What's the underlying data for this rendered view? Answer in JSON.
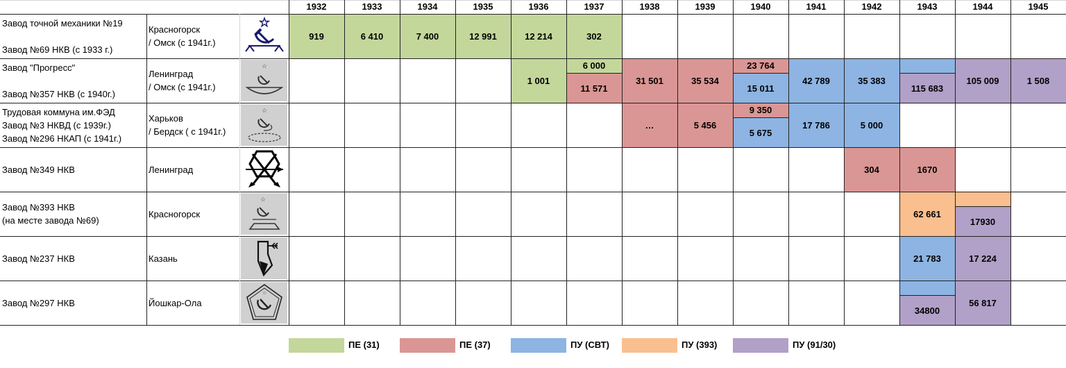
{
  "colors": {
    "pe31": "#c4d79b",
    "pe37": "#da9694",
    "pu_svt": "#8db4e2",
    "pu393": "#fabf8f",
    "pu9130": "#b1a0c7",
    "logo_bg": "#d0d0d0"
  },
  "years": [
    "1932",
    "1933",
    "1934",
    "1935",
    "1936",
    "1937",
    "1938",
    "1939",
    "1940",
    "1941",
    "1942",
    "1943",
    "1944",
    "1945"
  ],
  "rows": [
    {
      "name": "Завод точной механики №19\n\nЗавод №69 НКВ (с 1933 г.)",
      "city": "Красногорск\n/ Омск (с 1941г.)",
      "logo": "hammer-sickle-arrows-icon",
      "logo_bg": false
    },
    {
      "name": "Завод \"Прогресс\"\n\nЗавод №357 НКВ (с 1940г.)",
      "city": "Ленинград\n/ Омск (с 1941г.)",
      "logo": "hammer-sickle-bowl-icon",
      "logo_bg": true
    },
    {
      "name": "Трудовая коммуна им.ФЭД\nЗавод №3 НКВД (с 1939г.)\nЗавод №296 НКАП (с 1941г.)",
      "city": "Харьков\n/ Бердск ( с 1941г.)",
      "logo": "hammer-sickle-ellipse-icon",
      "logo_bg": true
    },
    {
      "name": "Завод №349 НКВ",
      "city": "Ленинград",
      "logo": "hexagon-arrows-icon",
      "logo_bg": false
    },
    {
      "name": "Завод №393 НКВ\n(на месте завода №69)",
      "city": "Красногорск",
      "logo": "hammer-sickle-trapezoid-icon",
      "logo_bg": true
    },
    {
      "name": "Завод №237 НКВ",
      "city": "Казань",
      "logo": "kazan-arrow-icon",
      "logo_bg": true
    },
    {
      "name": "Завод №297 НКВ",
      "city": "Йошкар-Ола",
      "logo": "pentagon-hammer-sickle-icon",
      "logo_bg": true
    }
  ],
  "cells": [
    {
      "row": 0,
      "col": 0,
      "span": 1,
      "part": "full",
      "type": "pe31",
      "value": "919"
    },
    {
      "row": 0,
      "col": 1,
      "span": 1,
      "part": "full",
      "type": "pe31",
      "value": "6 410"
    },
    {
      "row": 0,
      "col": 2,
      "span": 1,
      "part": "full",
      "type": "pe31",
      "value": "7 400"
    },
    {
      "row": 0,
      "col": 3,
      "span": 1,
      "part": "full",
      "type": "pe31",
      "value": "12 991"
    },
    {
      "row": 0,
      "col": 4,
      "span": 1,
      "part": "full",
      "type": "pe31",
      "value": "12 214"
    },
    {
      "row": 0,
      "col": 5,
      "span": 1,
      "part": "full",
      "type": "pe31",
      "value": "302"
    },
    {
      "row": 1,
      "col": 4,
      "span": 1,
      "part": "full",
      "type": "pe31",
      "value": "1 001"
    },
    {
      "row": 1,
      "col": 5,
      "span": 1,
      "part": "top",
      "type": "pe31",
      "value": "6 000"
    },
    {
      "row": 1,
      "col": 5,
      "span": 1,
      "part": "bottom",
      "type": "pe37",
      "value": "11 571"
    },
    {
      "row": 1,
      "col": 6,
      "span": 1,
      "part": "full",
      "type": "pe37",
      "value": "31 501"
    },
    {
      "row": 1,
      "col": 7,
      "span": 1,
      "part": "full",
      "type": "pe37",
      "value": "35 534"
    },
    {
      "row": 1,
      "col": 8,
      "span": 1,
      "part": "top",
      "type": "pe37",
      "value": "23 764"
    },
    {
      "row": 1,
      "col": 8,
      "span": 1,
      "part": "bottom",
      "type": "pu_svt",
      "value": "15 011"
    },
    {
      "row": 1,
      "col": 9,
      "span": 1,
      "part": "full",
      "type": "pu_svt",
      "value": "42 789"
    },
    {
      "row": 1,
      "col": 10,
      "span": 1,
      "part": "full",
      "type": "pu_svt",
      "value": "35 383"
    },
    {
      "row": 1,
      "col": 11,
      "span": 1,
      "part": "top",
      "type": "pu_svt",
      "value": ""
    },
    {
      "row": 1,
      "col": 11,
      "span": 1,
      "part": "bottom",
      "type": "pu9130",
      "value": "115 683"
    },
    {
      "row": 1,
      "col": 12,
      "span": 1,
      "part": "full",
      "type": "pu9130",
      "value": "105 009"
    },
    {
      "row": 1,
      "col": 13,
      "span": 1,
      "part": "full",
      "type": "pu9130",
      "value": "1 508"
    },
    {
      "row": 2,
      "col": 6,
      "span": 1,
      "part": "full",
      "type": "pe37",
      "value": "…"
    },
    {
      "row": 2,
      "col": 7,
      "span": 1,
      "part": "full",
      "type": "pe37",
      "value": "5 456"
    },
    {
      "row": 2,
      "col": 8,
      "span": 1,
      "part": "top",
      "type": "pe37",
      "value": "9 350"
    },
    {
      "row": 2,
      "col": 8,
      "span": 1,
      "part": "bottom",
      "type": "pu_svt",
      "value": "5 675"
    },
    {
      "row": 2,
      "col": 9,
      "span": 1,
      "part": "full",
      "type": "pu_svt",
      "value": "17 786"
    },
    {
      "row": 2,
      "col": 10,
      "span": 1,
      "part": "full",
      "type": "pu_svt",
      "value": "5 000"
    },
    {
      "row": 3,
      "col": 10,
      "span": 1,
      "part": "full",
      "type": "pe37",
      "value": "304"
    },
    {
      "row": 3,
      "col": 11,
      "span": 1,
      "part": "full",
      "type": "pe37",
      "value": "1670"
    },
    {
      "row": 4,
      "col": 11,
      "span": 1,
      "part": "full",
      "type": "pu393",
      "value": "62 661"
    },
    {
      "row": 4,
      "col": 12,
      "span": 1,
      "part": "top",
      "type": "pu393",
      "value": ""
    },
    {
      "row": 4,
      "col": 12,
      "span": 1,
      "part": "bottom",
      "type": "pu9130",
      "value": "17930"
    },
    {
      "row": 5,
      "col": 11,
      "span": 1,
      "part": "full",
      "type": "pu_svt",
      "value": "21 783"
    },
    {
      "row": 5,
      "col": 12,
      "span": 1,
      "part": "full",
      "type": "pu9130",
      "value": "17 224"
    },
    {
      "row": 6,
      "col": 11,
      "span": 1,
      "part": "top",
      "type": "pu_svt",
      "value": ""
    },
    {
      "row": 6,
      "col": 11,
      "span": 1,
      "part": "bottom",
      "type": "pu9130",
      "value": "34800"
    },
    {
      "row": 6,
      "col": 12,
      "span": 1,
      "part": "full",
      "type": "pu9130",
      "value": "56 817"
    }
  ],
  "legend": [
    {
      "type": "pe31",
      "label": "ПЕ (31)"
    },
    {
      "type": "pe37",
      "label": "ПЕ (37)"
    },
    {
      "type": "pu_svt",
      "label": "ПУ (СВТ)"
    },
    {
      "type": "pu393",
      "label": "ПУ (393)"
    },
    {
      "type": "pu9130",
      "label": "ПУ (91/30)"
    }
  ]
}
